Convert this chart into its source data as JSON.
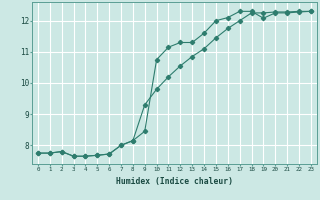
{
  "title": "",
  "xlabel": "Humidex (Indice chaleur)",
  "background_color": "#cce8e4",
  "grid_color": "#ffffff",
  "line_color": "#2e7d6e",
  "xlim": [
    -0.5,
    23.5
  ],
  "ylim": [
    7.4,
    12.6
  ],
  "xticks": [
    0,
    1,
    2,
    3,
    4,
    5,
    6,
    7,
    8,
    9,
    10,
    11,
    12,
    13,
    14,
    15,
    16,
    17,
    18,
    19,
    20,
    21,
    22,
    23
  ],
  "yticks": [
    8,
    9,
    10,
    11,
    12
  ],
  "line1_x": [
    0,
    1,
    2,
    3,
    4,
    5,
    6,
    7,
    8,
    9,
    10,
    11,
    12,
    13,
    14,
    15,
    16,
    17,
    18,
    19,
    20,
    21,
    22,
    23
  ],
  "line1_y": [
    7.75,
    7.75,
    7.8,
    7.65,
    7.65,
    7.68,
    7.72,
    8.0,
    8.15,
    8.45,
    10.75,
    11.15,
    11.3,
    11.3,
    11.6,
    12.0,
    12.1,
    12.3,
    12.3,
    12.08,
    12.25,
    12.25,
    12.28,
    12.3
  ],
  "line2_x": [
    0,
    1,
    2,
    3,
    4,
    5,
    6,
    7,
    8,
    9,
    10,
    11,
    12,
    13,
    14,
    15,
    16,
    17,
    18,
    19,
    20,
    21,
    22,
    23
  ],
  "line2_y": [
    7.75,
    7.75,
    7.8,
    7.65,
    7.65,
    7.68,
    7.72,
    8.0,
    8.15,
    9.3,
    9.8,
    10.2,
    10.55,
    10.85,
    11.1,
    11.45,
    11.75,
    12.0,
    12.25,
    12.25,
    12.28,
    12.28,
    12.3,
    12.3
  ]
}
